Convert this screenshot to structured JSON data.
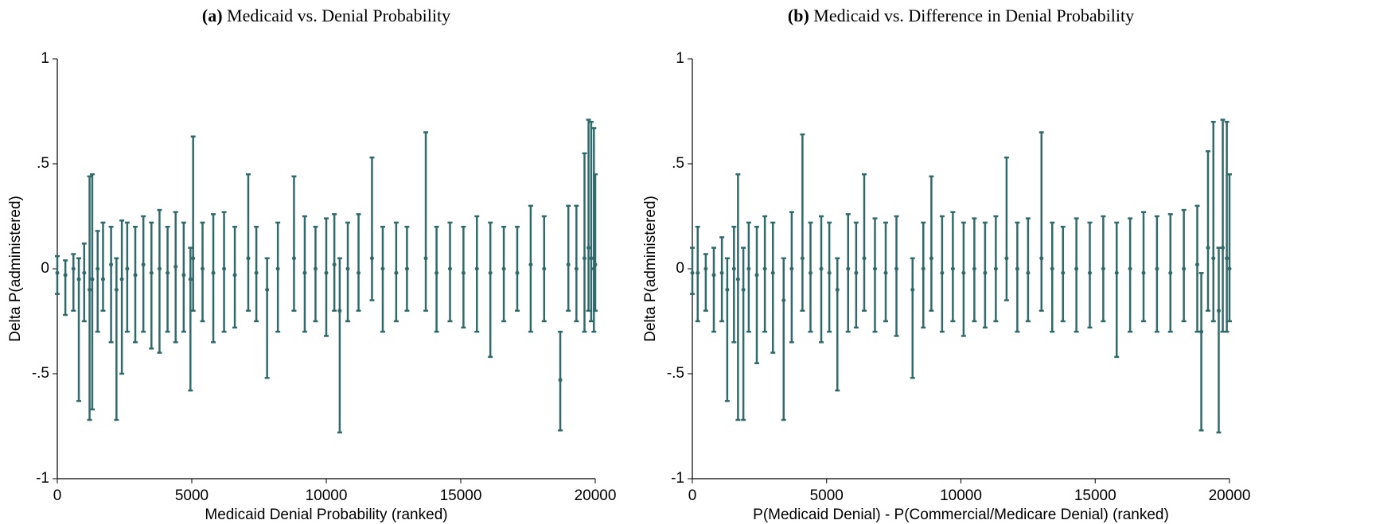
{
  "chart_data": [
    {
      "type": "errorbar",
      "label": "(a)",
      "title": "Medicaid vs. Denial Probability",
      "xlabel": "Medicaid Denial Probability (ranked)",
      "ylabel": "Delta P(administered)",
      "color": "#326a6c",
      "xlim": [
        0,
        20000
      ],
      "xticks": [
        0,
        5000,
        10000,
        15000,
        20000
      ],
      "ylim": [
        -1,
        1
      ],
      "yticks": [
        {
          "value": -1,
          "label": "-1"
        },
        {
          "value": -0.5,
          "label": "-.5"
        },
        0,
        {
          "value": 0.5,
          "label": ".5"
        },
        1
      ],
      "x": [
        0,
        300,
        600,
        800,
        1000,
        1200,
        1300,
        1500,
        1700,
        2000,
        2200,
        2400,
        2600,
        2900,
        3200,
        3500,
        3800,
        4100,
        4400,
        4700,
        4950,
        5050,
        5400,
        5800,
        6200,
        6600,
        7100,
        7400,
        7800,
        8200,
        8800,
        9200,
        9600,
        10000,
        10300,
        10500,
        10800,
        11200,
        11700,
        12100,
        12600,
        13000,
        13700,
        14100,
        14600,
        15100,
        15600,
        16100,
        16600,
        17100,
        17600,
        18100,
        18700,
        19000,
        19300,
        19600,
        19750,
        19850,
        19950,
        20000
      ],
      "values": [
        -0.02,
        -0.03,
        0,
        -0.05,
        -0.02,
        -0.1,
        -0.05,
        0,
        -0.05,
        0.02,
        -0.1,
        -0.05,
        0,
        -0.03,
        0.02,
        -0.02,
        0,
        -0.02,
        0.01,
        -0.03,
        -0.05,
        0.05,
        0,
        -0.02,
        0,
        -0.03,
        0.05,
        -0.02,
        -0.1,
        0,
        0.05,
        -0.02,
        0,
        -0.02,
        0.02,
        -0.2,
        0,
        -0.02,
        0.05,
        0,
        -0.02,
        0,
        0.05,
        -0.02,
        0,
        -0.02,
        0,
        -0.02,
        0,
        -0.02,
        0.02,
        0,
        -0.53,
        0.02,
        0,
        0.05,
        0.1,
        0.05,
        0,
        0.02
      ],
      "lower": [
        -0.12,
        -0.22,
        -0.2,
        -0.63,
        -0.25,
        -0.72,
        -0.67,
        -0.3,
        -0.2,
        -0.35,
        -0.72,
        -0.5,
        -0.3,
        -0.35,
        -0.3,
        -0.38,
        -0.4,
        -0.3,
        -0.35,
        -0.3,
        -0.58,
        -0.2,
        -0.25,
        -0.35,
        -0.3,
        -0.28,
        -0.2,
        -0.25,
        -0.52,
        -0.3,
        -0.2,
        -0.3,
        -0.25,
        -0.32,
        -0.2,
        -0.78,
        -0.25,
        -0.2,
        -0.15,
        -0.3,
        -0.25,
        -0.2,
        -0.2,
        -0.3,
        -0.25,
        -0.28,
        -0.3,
        -0.42,
        -0.25,
        -0.2,
        -0.3,
        -0.25,
        -0.77,
        -0.2,
        -0.25,
        -0.3,
        -0.2,
        -0.25,
        -0.3,
        -0.2
      ],
      "upper": [
        0.06,
        0.04,
        0.07,
        0.05,
        0.12,
        0.44,
        0.45,
        0.18,
        0.22,
        0.2,
        0.05,
        0.23,
        0.22,
        0.2,
        0.25,
        0.22,
        0.28,
        0.2,
        0.27,
        0.22,
        0.1,
        0.63,
        0.22,
        0.26,
        0.27,
        0.2,
        0.45,
        0.2,
        0.05,
        0.22,
        0.44,
        0.25,
        0.2,
        0.24,
        0.26,
        0.05,
        0.22,
        0.26,
        0.53,
        0.2,
        0.22,
        0.2,
        0.65,
        0.2,
        0.22,
        0.2,
        0.25,
        0.22,
        0.2,
        0.2,
        0.3,
        0.25,
        -0.3,
        0.3,
        0.3,
        0.55,
        0.71,
        0.7,
        0.67,
        0.45
      ]
    },
    {
      "type": "errorbar",
      "label": "(b)",
      "title": "Medicaid vs. Difference in Denial Probability",
      "xlabel": "P(Medicaid Denial) - P(Commercial/Medicare Denial) (ranked)",
      "ylabel": "Delta P(administered)",
      "color": "#326a6c",
      "xlim": [
        0,
        20000
      ],
      "xticks": [
        0,
        5000,
        10000,
        15000,
        20000
      ],
      "ylim": [
        -1,
        1
      ],
      "yticks": [
        {
          "value": -1,
          "label": "-1"
        },
        {
          "value": -0.5,
          "label": "-.5"
        },
        0,
        {
          "value": 0.5,
          "label": ".5"
        },
        1
      ],
      "x": [
        0,
        200,
        500,
        800,
        1100,
        1300,
        1550,
        1700,
        1900,
        2100,
        2400,
        2700,
        3000,
        3400,
        3700,
        4100,
        4400,
        4800,
        5100,
        5400,
        5800,
        6100,
        6400,
        6800,
        7200,
        7600,
        8200,
        8600,
        8900,
        9300,
        9700,
        10100,
        10500,
        10900,
        11300,
        11700,
        12100,
        12500,
        13000,
        13400,
        13800,
        14300,
        14800,
        15300,
        15800,
        16300,
        16800,
        17300,
        17800,
        18300,
        18800,
        18950,
        19200,
        19400,
        19600,
        19750,
        19900,
        20000
      ],
      "values": [
        -0.02,
        -0.02,
        0,
        -0.03,
        -0.02,
        -0.1,
        0,
        -0.05,
        -0.1,
        0,
        -0.03,
        0,
        -0.02,
        -0.15,
        0,
        0.05,
        -0.02,
        0,
        -0.02,
        -0.1,
        0,
        -0.02,
        0.05,
        0,
        -0.02,
        0,
        -0.1,
        0,
        0.05,
        -0.02,
        0,
        -0.02,
        0,
        -0.02,
        0,
        0.05,
        0,
        -0.02,
        0.05,
        0,
        -0.02,
        0,
        -0.02,
        0,
        -0.02,
        0,
        -0.02,
        0,
        -0.02,
        0,
        0.02,
        -0.3,
        0.1,
        0.05,
        -0.2,
        0.1,
        0.05,
        0
      ],
      "lower": [
        -0.12,
        -0.25,
        -0.2,
        -0.3,
        -0.25,
        -0.63,
        -0.35,
        -0.72,
        -0.72,
        -0.3,
        -0.45,
        -0.3,
        -0.4,
        -0.72,
        -0.35,
        -0.2,
        -0.3,
        -0.35,
        -0.3,
        -0.58,
        -0.3,
        -0.28,
        -0.2,
        -0.3,
        -0.25,
        -0.32,
        -0.52,
        -0.28,
        -0.2,
        -0.3,
        -0.25,
        -0.32,
        -0.25,
        -0.28,
        -0.25,
        -0.15,
        -0.3,
        -0.25,
        -0.2,
        -0.3,
        -0.25,
        -0.3,
        -0.28,
        -0.25,
        -0.42,
        -0.3,
        -0.25,
        -0.3,
        -0.3,
        -0.25,
        -0.3,
        -0.77,
        -0.2,
        -0.25,
        -0.78,
        -0.3,
        -0.3,
        -0.25
      ],
      "upper": [
        0.1,
        0.2,
        0.07,
        0.1,
        0.15,
        0.05,
        0.2,
        0.45,
        0.1,
        0.22,
        0.2,
        0.25,
        0.22,
        0.05,
        0.27,
        0.64,
        0.22,
        0.25,
        0.22,
        0.05,
        0.26,
        0.22,
        0.45,
        0.24,
        0.22,
        0.25,
        0.05,
        0.22,
        0.44,
        0.25,
        0.27,
        0.22,
        0.24,
        0.22,
        0.25,
        0.53,
        0.22,
        0.24,
        0.65,
        0.22,
        0.2,
        0.24,
        0.22,
        0.25,
        0.22,
        0.24,
        0.27,
        0.25,
        0.26,
        0.28,
        0.3,
        -0.02,
        0.56,
        0.7,
        0.1,
        0.71,
        0.7,
        0.45
      ]
    }
  ]
}
